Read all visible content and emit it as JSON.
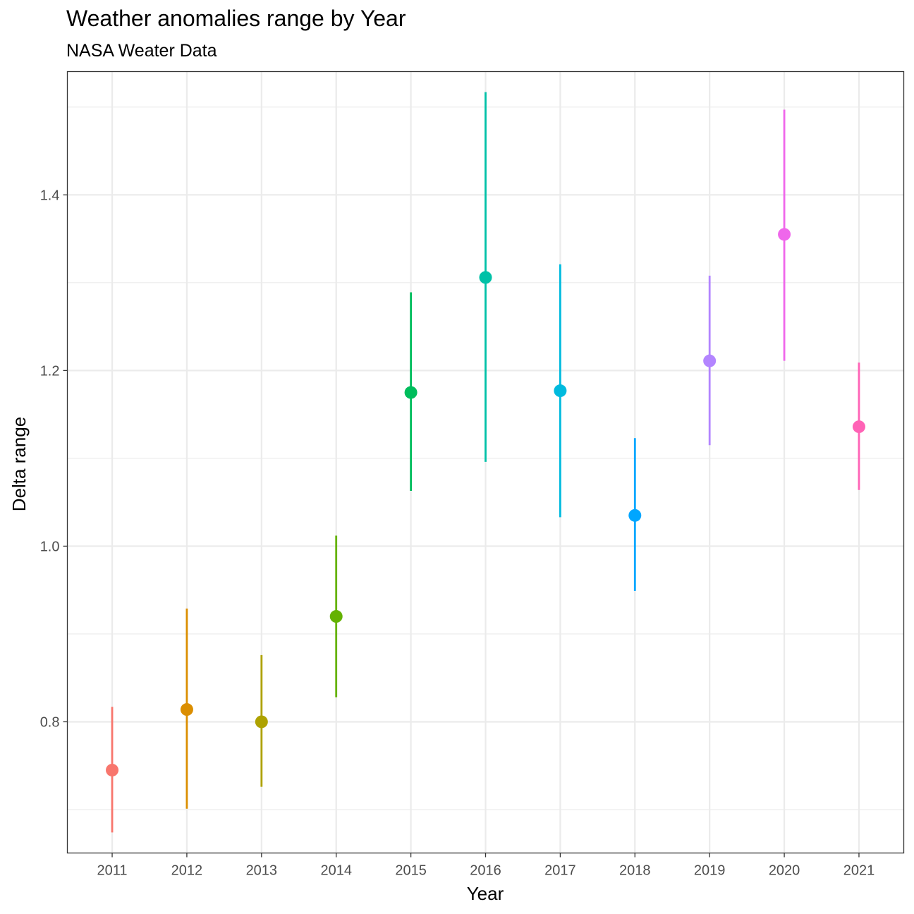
{
  "chart_data": {
    "type": "scatter",
    "title": "Weather anomalies range by Year",
    "subtitle": "NASA Weater Data",
    "xlabel": "Year",
    "ylabel": "Delta range",
    "categories": [
      "2011",
      "2012",
      "2013",
      "2014",
      "2015",
      "2016",
      "2017",
      "2018",
      "2019",
      "2020",
      "2021"
    ],
    "values": [
      0.745,
      0.814,
      0.8,
      0.92,
      1.175,
      1.306,
      1.177,
      1.035,
      1.211,
      1.355,
      1.136
    ],
    "ymin": [
      0.674,
      0.701,
      0.726,
      0.828,
      1.063,
      1.096,
      1.033,
      0.949,
      1.115,
      1.211,
      1.064
    ],
    "ymax": [
      0.817,
      0.929,
      0.876,
      1.012,
      1.289,
      1.517,
      1.321,
      1.123,
      1.308,
      1.497,
      1.209
    ],
    "colors": [
      "#F8766D",
      "#DB8E00",
      "#AEA200",
      "#64B200",
      "#00BD5C",
      "#00C1A7",
      "#00BADE",
      "#00A6FF",
      "#B385FF",
      "#EF67EB",
      "#FF63B6"
    ],
    "yticks": [
      "0.8",
      "1.0",
      "1.2",
      "1.4"
    ],
    "ylim": [
      0.6506,
      1.5404
    ],
    "grid": true,
    "legend": "none"
  }
}
